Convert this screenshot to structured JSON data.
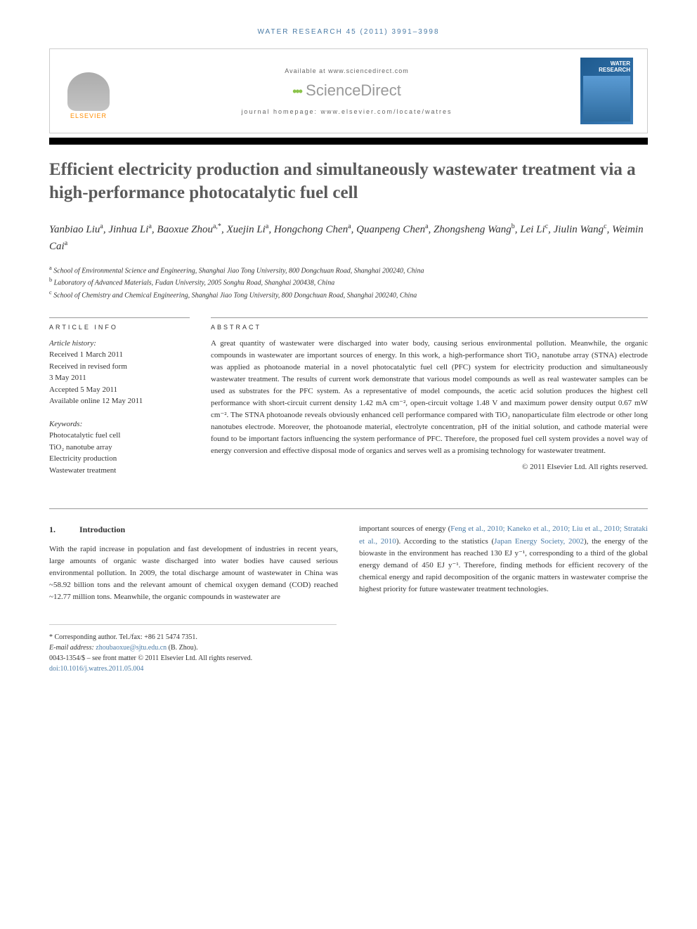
{
  "header": {
    "citation_prefix": "WATER RESEARCH 45 (2011) 3991–3998",
    "available": "Available at www.sciencedirect.com",
    "sciencedirect": "ScienceDirect",
    "homepage": "journal homepage: www.elsevier.com/locate/watres",
    "elsevier": "ELSEVIER",
    "cover_title": "WATER RESEARCH"
  },
  "title": "Efficient electricity production and simultaneously wastewater treatment via a high-performance photocatalytic fuel cell",
  "authors_html": "Yanbiao Liu<sup>a</sup>, Jinhua Li<sup>a</sup>, Baoxue Zhou<sup>a,*</sup>, Xuejin Li<sup>a</sup>, Hongchong Chen<sup>a</sup>, Quanpeng Chen<sup>a</sup>, Zhongsheng Wang<sup>b</sup>, Lei Li<sup>c</sup>, Jiulin Wang<sup>c</sup>, Weimin Cai<sup>a</sup>",
  "affiliations": [
    {
      "sup": "a",
      "text": "School of Environmental Science and Engineering, Shanghai Jiao Tong University, 800 Dongchuan Road, Shanghai 200240, China"
    },
    {
      "sup": "b",
      "text": "Laboratory of Advanced Materials, Fudan University, 2005 Songhu Road, Shanghai 200438, China"
    },
    {
      "sup": "c",
      "text": "School of Chemistry and Chemical Engineering, Shanghai Jiao Tong University, 800 Dongchuan Road, Shanghai 200240, China"
    }
  ],
  "article_info": {
    "heading": "ARTICLE INFO",
    "history_label": "Article history:",
    "history": [
      "Received 1 March 2011",
      "Received in revised form",
      "3 May 2011",
      "Accepted 5 May 2011",
      "Available online 12 May 2011"
    ],
    "keywords_label": "Keywords:",
    "keywords": [
      "Photocatalytic fuel cell",
      "TiO₂ nanotube array",
      "Electricity production",
      "Wastewater treatment"
    ]
  },
  "abstract": {
    "heading": "ABSTRACT",
    "text": "A great quantity of wastewater were discharged into water body, causing serious environmental pollution. Meanwhile, the organic compounds in wastewater are important sources of energy. In this work, a high-performance short TiO₂ nanotube array (STNA) electrode was applied as photoanode material in a novel photocatalytic fuel cell (PFC) system for electricity production and simultaneously wastewater treatment. The results of current work demonstrate that various model compounds as well as real wastewater samples can be used as substrates for the PFC system. As a representative of model compounds, the acetic acid solution produces the highest cell performance with short-circuit current density 1.42 mA cm⁻², open-circuit voltage 1.48 V and maximum power density output 0.67 mW cm⁻². The STNA photoanode reveals obviously enhanced cell performance compared with TiO₂ nanoparticulate film electrode or other long nanotubes electrode. Moreover, the photoanode material, electrolyte concentration, pH of the initial solution, and cathode material were found to be important factors influencing the system performance of PFC. Therefore, the proposed fuel cell system provides a novel way of energy conversion and effective disposal mode of organics and serves well as a promising technology for wastewater treatment.",
    "copyright": "© 2011 Elsevier Ltd. All rights reserved."
  },
  "body": {
    "section_num": "1.",
    "section_title": "Introduction",
    "col1": "With the rapid increase in population and fast development of industries in recent years, large amounts of organic waste discharged into water bodies have caused serious environmental pollution. In 2009, the total discharge amount of wastewater in China was ~58.92 billion tons and the relevant amount of chemical oxygen demand (COD) reached ~12.77 million tons. Meanwhile, the organic compounds in wastewater are",
    "col2_pre": "important sources of energy (",
    "col2_link1": "Feng et al., 2010; Kaneko et al., 2010; Liu et al., 2010; Strataki et al., 2010",
    "col2_mid1": "). According to the statistics (",
    "col2_link2": "Japan Energy Society, 2002",
    "col2_post": "), the energy of the biowaste in the environment has reached 130 EJ y⁻¹, corresponding to a third of the global energy demand of 450 EJ y⁻¹. Therefore, finding methods for efficient recovery of the chemical energy and rapid decomposition of the organic matters in wastewater comprise the highest priority for future wastewater treatment technologies."
  },
  "footer": {
    "corresponding": "* Corresponding author. Tel./fax: +86 21 5474 7351.",
    "email_label": "E-mail address: ",
    "email": "zhoubaoxue@sjtu.edu.cn",
    "email_suffix": " (B. Zhou).",
    "issn": "0043-1354/$ – see front matter © 2011 Elsevier Ltd. All rights reserved.",
    "doi": "doi:10.1016/j.watres.2011.05.004"
  },
  "colors": {
    "link": "#4a7ba6",
    "orange": "#ff8c00",
    "title_gray": "#5a5a5a",
    "cover_blue": "#1e5a8e"
  }
}
